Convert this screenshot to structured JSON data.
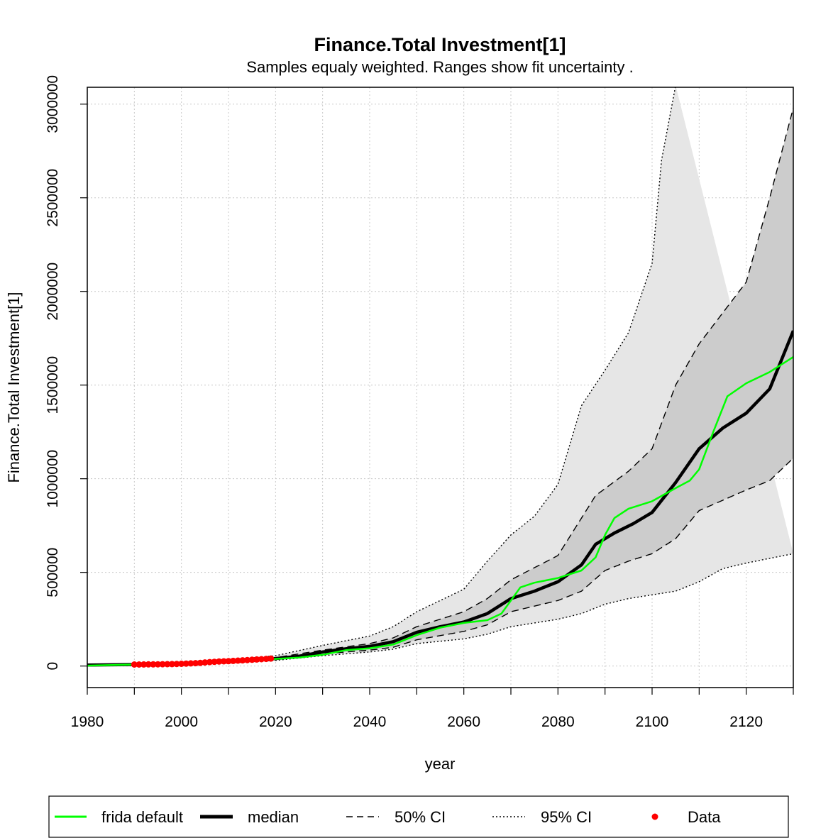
{
  "chart_data": {
    "type": "line",
    "title": "Finance.Total Investment[1]",
    "subtitle": "Samples equaly weighted. Ranges show  fit uncertainty .",
    "xlabel": "year",
    "ylabel": "Finance.Total Investment[1]",
    "xlim": [
      1980,
      2130
    ],
    "ylim": [
      -115000,
      3090000
    ],
    "x_ticks": [
      1980,
      2000,
      2020,
      2040,
      2060,
      2080,
      2100,
      2120
    ],
    "x_tick_labels": [
      "1980",
      "2000",
      "2020",
      "2040",
      "2060",
      "2080",
      "2100",
      "2120"
    ],
    "x_minor_ticks": [
      1990,
      2010,
      2030,
      2050,
      2070,
      2090,
      2110,
      2130
    ],
    "y_ticks": [
      0,
      500000,
      1000000,
      1500000,
      2000000,
      2500000,
      3000000
    ],
    "y_tick_labels": [
      "0",
      "500000",
      "1000000",
      "1500000",
      "2000000",
      "2500000",
      "3000000"
    ],
    "grid": true,
    "legend_position": "bottom",
    "colors": {
      "frida_default": "#00ff00",
      "median": "#000000",
      "band_95": "#e6e6e6",
      "band_50": "#cccccc",
      "data": "#ff0000",
      "grid": "#c8c8c8"
    },
    "legend": [
      {
        "label": "frida default",
        "style": "green-line"
      },
      {
        "label": "median",
        "style": "thick-black-line"
      },
      {
        "label": "50% CI",
        "style": "dashed-line"
      },
      {
        "label": "95% CI",
        "style": "dotted-line"
      },
      {
        "label": "Data",
        "style": "red-dot"
      }
    ],
    "series": [
      {
        "name": "frida default",
        "points": [
          [
            1980,
            2000
          ],
          [
            1990,
            8000
          ],
          [
            2000,
            12000
          ],
          [
            2010,
            22000
          ],
          [
            2020,
            38000
          ],
          [
            2025,
            45000
          ],
          [
            2030,
            60000
          ],
          [
            2035,
            85000
          ],
          [
            2040,
            95000
          ],
          [
            2045,
            115000
          ],
          [
            2050,
            165000
          ],
          [
            2055,
            205000
          ],
          [
            2060,
            230000
          ],
          [
            2065,
            245000
          ],
          [
            2068,
            280000
          ],
          [
            2070,
            350000
          ],
          [
            2072,
            420000
          ],
          [
            2075,
            445000
          ],
          [
            2080,
            470000
          ],
          [
            2085,
            510000
          ],
          [
            2088,
            580000
          ],
          [
            2090,
            700000
          ],
          [
            2092,
            790000
          ],
          [
            2095,
            840000
          ],
          [
            2100,
            880000
          ],
          [
            2105,
            950000
          ],
          [
            2108,
            990000
          ],
          [
            2110,
            1050000
          ],
          [
            2113,
            1250000
          ],
          [
            2116,
            1440000
          ],
          [
            2120,
            1510000
          ],
          [
            2125,
            1570000
          ],
          [
            2130,
            1650000
          ]
        ]
      },
      {
        "name": "median",
        "points": [
          [
            1980,
            5000
          ],
          [
            1990,
            8000
          ],
          [
            2000,
            12000
          ],
          [
            2010,
            22000
          ],
          [
            2020,
            40000
          ],
          [
            2025,
            52000
          ],
          [
            2030,
            75000
          ],
          [
            2035,
            92000
          ],
          [
            2040,
            105000
          ],
          [
            2045,
            130000
          ],
          [
            2050,
            180000
          ],
          [
            2055,
            210000
          ],
          [
            2060,
            235000
          ],
          [
            2065,
            280000
          ],
          [
            2070,
            360000
          ],
          [
            2075,
            400000
          ],
          [
            2080,
            450000
          ],
          [
            2085,
            540000
          ],
          [
            2088,
            650000
          ],
          [
            2092,
            710000
          ],
          [
            2096,
            760000
          ],
          [
            2100,
            820000
          ],
          [
            2105,
            980000
          ],
          [
            2110,
            1160000
          ],
          [
            2115,
            1270000
          ],
          [
            2120,
            1350000
          ],
          [
            2125,
            1480000
          ],
          [
            2130,
            1790000
          ]
        ]
      },
      {
        "name": "50% CI upper",
        "points": [
          [
            1980,
            6000
          ],
          [
            1990,
            9000
          ],
          [
            2000,
            14000
          ],
          [
            2010,
            26000
          ],
          [
            2020,
            45000
          ],
          [
            2030,
            85000
          ],
          [
            2040,
            120000
          ],
          [
            2045,
            150000
          ],
          [
            2050,
            210000
          ],
          [
            2060,
            290000
          ],
          [
            2065,
            360000
          ],
          [
            2070,
            460000
          ],
          [
            2080,
            590000
          ],
          [
            2085,
            790000
          ],
          [
            2088,
            910000
          ],
          [
            2095,
            1040000
          ],
          [
            2100,
            1160000
          ],
          [
            2105,
            1500000
          ],
          [
            2110,
            1720000
          ],
          [
            2120,
            2050000
          ],
          [
            2125,
            2500000
          ],
          [
            2130,
            2980000
          ]
        ]
      },
      {
        "name": "50% CI lower",
        "points": [
          [
            1980,
            4000
          ],
          [
            1990,
            7000
          ],
          [
            2000,
            10000
          ],
          [
            2010,
            18000
          ],
          [
            2020,
            35000
          ],
          [
            2030,
            65000
          ],
          [
            2040,
            85000
          ],
          [
            2045,
            100000
          ],
          [
            2050,
            140000
          ],
          [
            2060,
            185000
          ],
          [
            2065,
            220000
          ],
          [
            2070,
            290000
          ],
          [
            2080,
            350000
          ],
          [
            2085,
            400000
          ],
          [
            2090,
            510000
          ],
          [
            2095,
            560000
          ],
          [
            2100,
            600000
          ],
          [
            2105,
            680000
          ],
          [
            2110,
            830000
          ],
          [
            2120,
            940000
          ],
          [
            2125,
            990000
          ],
          [
            2130,
            1110000
          ]
        ]
      },
      {
        "name": "95% CI upper",
        "points": [
          [
            1980,
            8000
          ],
          [
            1990,
            11000
          ],
          [
            2000,
            18000
          ],
          [
            2010,
            32000
          ],
          [
            2020,
            55000
          ],
          [
            2030,
            110000
          ],
          [
            2040,
            160000
          ],
          [
            2045,
            210000
          ],
          [
            2050,
            290000
          ],
          [
            2060,
            410000
          ],
          [
            2065,
            560000
          ],
          [
            2070,
            700000
          ],
          [
            2075,
            800000
          ],
          [
            2080,
            970000
          ],
          [
            2085,
            1390000
          ],
          [
            2090,
            1580000
          ],
          [
            2095,
            1780000
          ],
          [
            2100,
            2150000
          ],
          [
            2102,
            2700000
          ],
          [
            2105,
            3100000
          ]
        ]
      },
      {
        "name": "95% CI lower",
        "points": [
          [
            1980,
            3000
          ],
          [
            1990,
            6000
          ],
          [
            2000,
            9000
          ],
          [
            2010,
            16000
          ],
          [
            2020,
            30000
          ],
          [
            2030,
            55000
          ],
          [
            2040,
            75000
          ],
          [
            2045,
            90000
          ],
          [
            2050,
            120000
          ],
          [
            2060,
            145000
          ],
          [
            2065,
            170000
          ],
          [
            2070,
            210000
          ],
          [
            2080,
            250000
          ],
          [
            2085,
            280000
          ],
          [
            2090,
            330000
          ],
          [
            2095,
            360000
          ],
          [
            2100,
            380000
          ],
          [
            2105,
            400000
          ],
          [
            2110,
            450000
          ],
          [
            2115,
            520000
          ],
          [
            2120,
            550000
          ],
          [
            2125,
            575000
          ],
          [
            2130,
            600000
          ]
        ]
      }
    ],
    "data_points": {
      "name": "Data",
      "x": [
        1990,
        1991,
        1992,
        1993,
        1994,
        1995,
        1996,
        1997,
        1998,
        1999,
        2000,
        2001,
        2002,
        2003,
        2004,
        2005,
        2006,
        2007,
        2008,
        2009,
        2010,
        2011,
        2012,
        2013,
        2014,
        2015,
        2016,
        2017,
        2018,
        2019
      ],
      "y": [
        8000,
        8200,
        8500,
        8700,
        9000,
        9300,
        9600,
        10000,
        10500,
        11000,
        12000,
        13000,
        14000,
        15500,
        17000,
        19000,
        21000,
        22500,
        24000,
        25000,
        26000,
        27500,
        29000,
        30500,
        32000,
        33500,
        35000,
        36500,
        38000,
        40000
      ]
    }
  }
}
